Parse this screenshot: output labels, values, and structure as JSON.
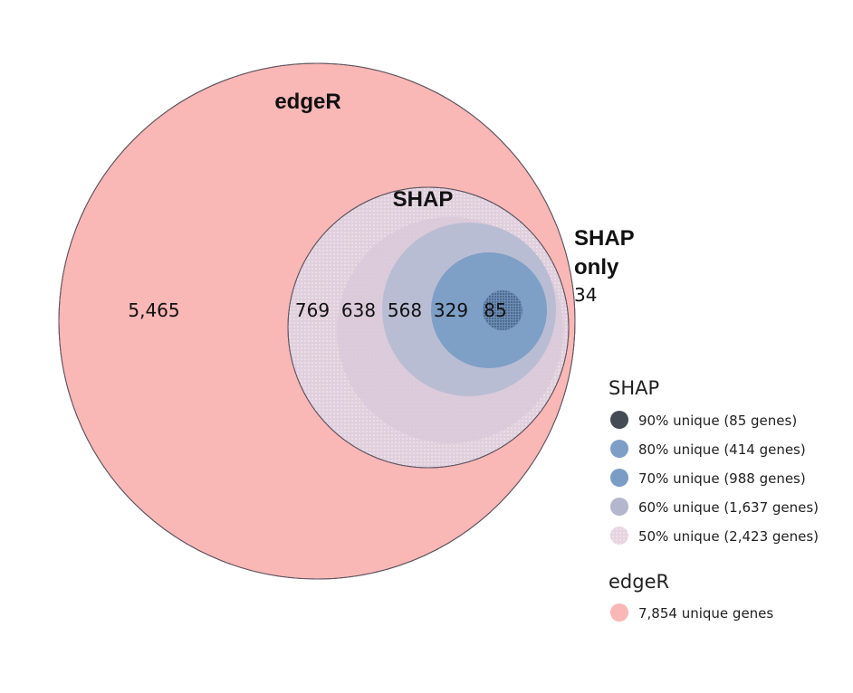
{
  "diagram": {
    "sets": {
      "edger": {
        "title": "edgeR",
        "color": "#f9b7b6"
      },
      "shap": {
        "title": "SHAP"
      },
      "shap_only": {
        "title_line1": "SHAP",
        "title_line2": "only",
        "count": "34"
      }
    },
    "regions": {
      "edger_only": "5,465",
      "shap_50": "769",
      "shap_60": "638",
      "shap_70": "568",
      "shap_80": "329",
      "shap_90": "85"
    },
    "colors": {
      "shap_50": "#e0cfdc",
      "shap_60": "#b9bdd3",
      "shap_70": "#7e9fc6",
      "shap_80": "#6c8eb9",
      "shap_90": "#3f4955",
      "outline": "#5f5560"
    }
  },
  "legend": {
    "shap_title": "SHAP",
    "shap_items": [
      {
        "label": "90% unique (85 genes)",
        "color": "#444b55"
      },
      {
        "label": "80% unique (414 genes)",
        "color": "#7f9ec7"
      },
      {
        "label": "70% unique (988 genes)",
        "color": "#7a9cc5"
      },
      {
        "label": "60% unique (1,637 genes)",
        "color": "#b3b6cc"
      },
      {
        "label": "50% unique (2,423 genes)",
        "color": "#e6d4e0"
      }
    ],
    "edger_title": "edgeR",
    "edger_items": [
      {
        "label": "7,854 unique genes",
        "color": "#f9b7b6"
      }
    ]
  }
}
